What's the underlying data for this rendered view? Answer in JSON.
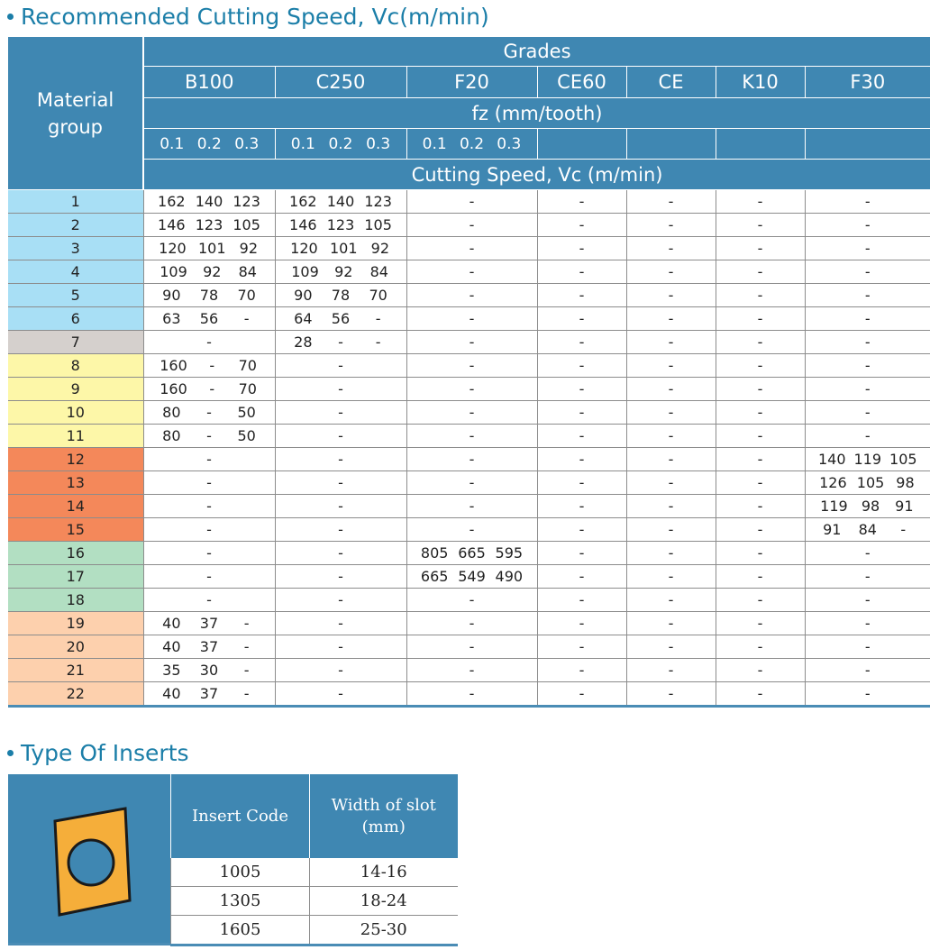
{
  "section1": {
    "title": "Recommended Cutting Speed, Vc(m/min)"
  },
  "table": {
    "material_group_label": "Material group",
    "grades_label": "Grades",
    "grades": [
      "B100",
      "C250",
      "F20",
      "CE60",
      "CE",
      "K10",
      "F30"
    ],
    "fz_label": "fz (mm/tooth)",
    "fz_values": [
      "0.1",
      "0.2",
      "0.3"
    ],
    "speed_label": "Cutting Speed, Vc (m/min)",
    "rows": [
      {
        "group": "1",
        "color": "#a8dff5",
        "b100": [
          "162",
          "140",
          "123"
        ],
        "c250": [
          "162",
          "140",
          "123"
        ],
        "f20": "-",
        "ce60": "-",
        "ce": "-",
        "k10": "-",
        "f30": "-"
      },
      {
        "group": "2",
        "color": "#a8dff5",
        "b100": [
          "146",
          "123",
          "105"
        ],
        "c250": [
          "146",
          "123",
          "105"
        ],
        "f20": "-",
        "ce60": "-",
        "ce": "-",
        "k10": "-",
        "f30": "-"
      },
      {
        "group": "3",
        "color": "#a8dff5",
        "b100": [
          "120",
          "101",
          "92"
        ],
        "c250": [
          "120",
          "101",
          "92"
        ],
        "f20": "-",
        "ce60": "-",
        "ce": "-",
        "k10": "-",
        "f30": "-"
      },
      {
        "group": "4",
        "color": "#a8dff5",
        "b100": [
          "109",
          "92",
          "84"
        ],
        "c250": [
          "109",
          "92",
          "84"
        ],
        "f20": "-",
        "ce60": "-",
        "ce": "-",
        "k10": "-",
        "f30": "-"
      },
      {
        "group": "5",
        "color": "#a8dff5",
        "b100": [
          "90",
          "78",
          "70"
        ],
        "c250": [
          "90",
          "78",
          "70"
        ],
        "f20": "-",
        "ce60": "-",
        "ce": "-",
        "k10": "-",
        "f30": "-"
      },
      {
        "group": "6",
        "color": "#a8dff5",
        "b100": [
          "63",
          "56",
          "-"
        ],
        "c250": [
          "64",
          "56",
          "-"
        ],
        "f20": "-",
        "ce60": "-",
        "ce": "-",
        "k10": "-",
        "f30": "-"
      },
      {
        "group": "7",
        "color": "#d5d0cd",
        "b100": "-",
        "c250": [
          "28",
          "-",
          "-"
        ],
        "f20": "-",
        "ce60": "-",
        "ce": "-",
        "k10": "-",
        "f30": "-"
      },
      {
        "group": "8",
        "color": "#fdf7a8",
        "b100": [
          "160",
          "-",
          "70"
        ],
        "c250": "-",
        "f20": "-",
        "ce60": "-",
        "ce": "-",
        "k10": "-",
        "f30": "-"
      },
      {
        "group": "9",
        "color": "#fdf7a8",
        "b100": [
          "160",
          "-",
          "70"
        ],
        "c250": "-",
        "f20": "-",
        "ce60": "-",
        "ce": "-",
        "k10": "-",
        "f30": "-"
      },
      {
        "group": "10",
        "color": "#fdf7a8",
        "b100": [
          "80",
          "-",
          "50"
        ],
        "c250": "-",
        "f20": "-",
        "ce60": "-",
        "ce": "-",
        "k10": "-",
        "f30": "-"
      },
      {
        "group": "11",
        "color": "#fdf7a8",
        "b100": [
          "80",
          "-",
          "50"
        ],
        "c250": "-",
        "f20": "-",
        "ce60": "-",
        "ce": "-",
        "k10": "-",
        "f30": "-"
      },
      {
        "group": "12",
        "color": "#f4885a",
        "b100": "-",
        "c250": "-",
        "f20": "-",
        "ce60": "-",
        "ce": "-",
        "k10": "-",
        "f30": [
          "140",
          "119",
          "105"
        ]
      },
      {
        "group": "13",
        "color": "#f4885a",
        "b100": "-",
        "c250": "-",
        "f20": "-",
        "ce60": "-",
        "ce": "-",
        "k10": "-",
        "f30": [
          "126",
          "105",
          "98"
        ]
      },
      {
        "group": "14",
        "color": "#f4885a",
        "b100": "-",
        "c250": "-",
        "f20": "-",
        "ce60": "-",
        "ce": "-",
        "k10": "-",
        "f30": [
          "119",
          "98",
          "91"
        ]
      },
      {
        "group": "15",
        "color": "#f4885a",
        "b100": "-",
        "c250": "-",
        "f20": "-",
        "ce60": "-",
        "ce": "-",
        "k10": "-",
        "f30": [
          "91",
          "84",
          "-"
        ]
      },
      {
        "group": "16",
        "color": "#b2dfc2",
        "b100": "-",
        "c250": "-",
        "f20": [
          "805",
          "665",
          "595"
        ],
        "ce60": "-",
        "ce": "-",
        "k10": "-",
        "f30": "-"
      },
      {
        "group": "17",
        "color": "#b2dfc2",
        "b100": "-",
        "c250": "-",
        "f20": [
          "665",
          "549",
          "490"
        ],
        "ce60": "-",
        "ce": "-",
        "k10": "-",
        "f30": "-"
      },
      {
        "group": "18",
        "color": "#b2dfc2",
        "b100": "-",
        "c250": "-",
        "f20": "-",
        "ce60": "-",
        "ce": "-",
        "k10": "-",
        "f30": "-"
      },
      {
        "group": "19",
        "color": "#fdd0ad",
        "b100": [
          "40",
          "37",
          "-"
        ],
        "c250": "-",
        "f20": "-",
        "ce60": "-",
        "ce": "-",
        "k10": "-",
        "f30": "-"
      },
      {
        "group": "20",
        "color": "#fdd0ad",
        "b100": [
          "40",
          "37",
          "-"
        ],
        "c250": "-",
        "f20": "-",
        "ce60": "-",
        "ce": "-",
        "k10": "-",
        "f30": "-"
      },
      {
        "group": "21",
        "color": "#fdd0ad",
        "b100": [
          "35",
          "30",
          "-"
        ],
        "c250": "-",
        "f20": "-",
        "ce60": "-",
        "ce": "-",
        "k10": "-",
        "f30": "-"
      },
      {
        "group": "22",
        "color": "#fdd0ad",
        "b100": [
          "40",
          "37",
          "-"
        ],
        "c250": "-",
        "f20": "-",
        "ce60": "-",
        "ce": "-",
        "k10": "-",
        "f30": "-"
      }
    ]
  },
  "section2": {
    "title": "Type Of Inserts"
  },
  "inserts": {
    "icon": "insert-icon",
    "header_code": "Insert Code",
    "header_width_line1": "Width of slot",
    "header_width_line2": "(mm)",
    "rows": [
      {
        "code": "1005",
        "width": "14-16"
      },
      {
        "code": "1305",
        "width": "18-24"
      },
      {
        "code": "1605",
        "width": "25-30"
      }
    ]
  },
  "colors": {
    "header": "#3f87b2",
    "title": "#1b7ea8",
    "insert_fill": "#f5ae3a"
  }
}
